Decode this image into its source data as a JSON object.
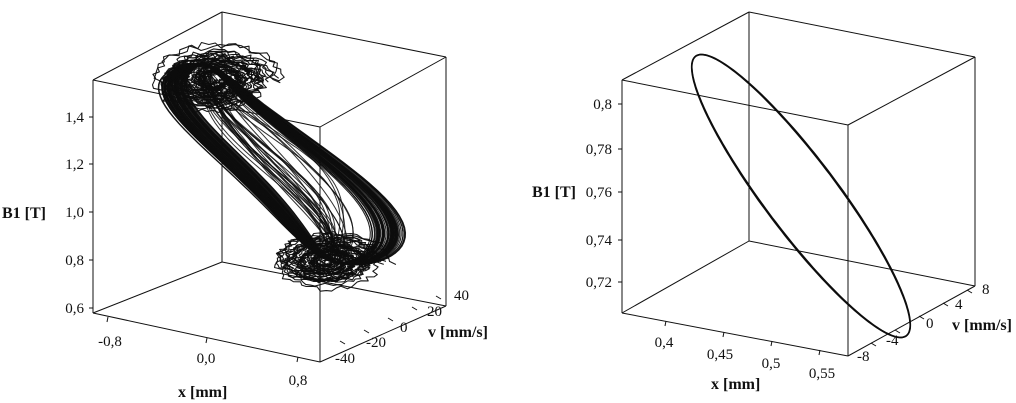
{
  "chart_data": [
    {
      "type": "line",
      "projection": "3d",
      "title": "",
      "xlabel": "x [mm]",
      "ylabel": "v [mm/s]",
      "zlabel": "B1 [T]",
      "x_ticks": [
        "-0,8",
        "0,0",
        "0,8"
      ],
      "y_ticks": [
        "-40",
        "-20",
        "0",
        "20",
        "40"
      ],
      "z_ticks": [
        "0,6",
        "0,8",
        "1,0",
        "1,2",
        "1,4"
      ],
      "xlim": [
        -1.1,
        1.1
      ],
      "ylim": [
        -50,
        50
      ],
      "zlim": [
        0.56,
        1.58
      ],
      "attractor": "chaotic double-scroll",
      "scroll_centers": [
        {
          "x": -0.3,
          "v": 0,
          "B1": 1.45
        },
        {
          "x": 0.45,
          "v": 0,
          "B1": 0.78
        }
      ]
    },
    {
      "type": "line",
      "projection": "3d",
      "title": "",
      "xlabel": "x [mm]",
      "ylabel": "v [mm/s]",
      "zlabel": "B1 [T]",
      "x_ticks": [
        "0,4",
        "0,45",
        "0,5",
        "0,55"
      ],
      "y_ticks": [
        "-8",
        "-4",
        "0",
        "4",
        "8"
      ],
      "z_ticks": [
        "0,72",
        "0,74",
        "0,76",
        "0,78",
        "0,8"
      ],
      "xlim": [
        0.37,
        0.58
      ],
      "ylim": [
        -10,
        10
      ],
      "zlim": [
        0.705,
        0.82
      ],
      "curve": "periodic limit cycle",
      "center": {
        "x": 0.475,
        "v": 0,
        "B1": 0.763
      }
    }
  ]
}
